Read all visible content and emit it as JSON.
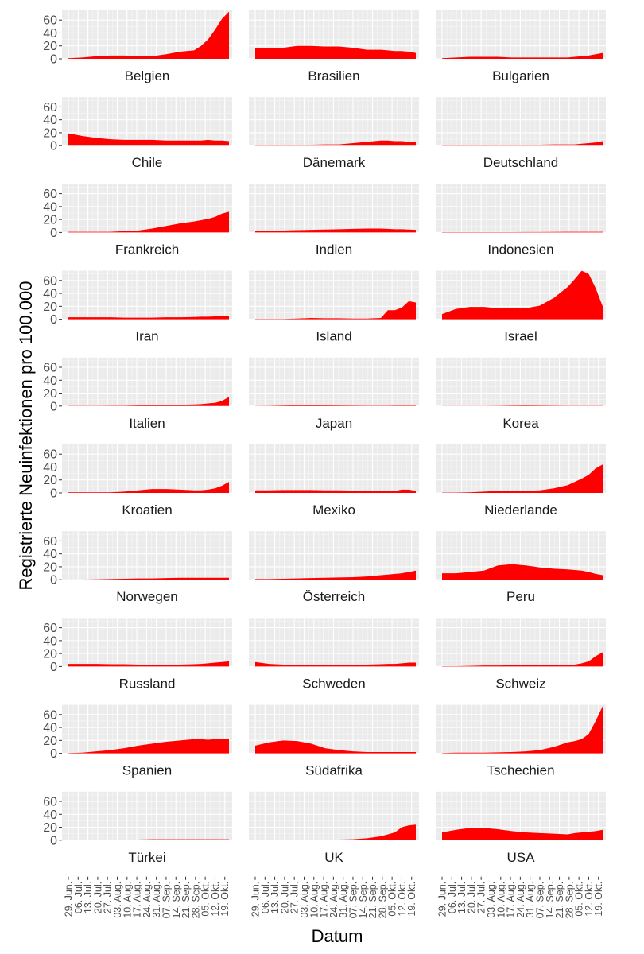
{
  "chart_data": {
    "type": "area",
    "layout": "facet-grid-10x3",
    "xlabel": "Datum",
    "ylabel": "Registrierte Neuinfektionen pro 100.000",
    "ylim": [
      0,
      75
    ],
    "yticks": [
      0,
      20,
      40,
      60
    ],
    "xlim": [
      0,
      115
    ],
    "x_ticks": [
      {
        "label": "29. Jun.",
        "day": 0
      },
      {
        "label": "06. Jul.",
        "day": 7
      },
      {
        "label": "13. Jul.",
        "day": 14
      },
      {
        "label": "20. Jul.",
        "day": 21
      },
      {
        "label": "27. Jul.",
        "day": 28
      },
      {
        "label": "03. Aug.",
        "day": 35
      },
      {
        "label": "10. Aug.",
        "day": 42
      },
      {
        "label": "17. Aug.",
        "day": 49
      },
      {
        "label": "24. Aug.",
        "day": 56
      },
      {
        "label": "31. Aug.",
        "day": 63
      },
      {
        "label": "07. Sep.",
        "day": 70
      },
      {
        "label": "14. Sep.",
        "day": 77
      },
      {
        "label": "21. Sep.",
        "day": 84
      },
      {
        "label": "28. Sep.",
        "day": 91
      },
      {
        "label": "05. Okt.",
        "day": 98
      },
      {
        "label": "12. Okt.",
        "day": 105
      },
      {
        "label": "19. Okt.",
        "day": 112
      }
    ],
    "series_day_offsets": [
      0,
      10,
      20,
      30,
      40,
      50,
      60,
      70,
      80,
      90,
      95,
      100,
      105,
      110,
      115
    ],
    "fill_color": "#ff0000",
    "panel_background": "#ebebeb",
    "series": [
      {
        "name": "Belgien",
        "values": [
          1,
          2,
          4,
          5,
          5,
          4,
          4,
          7,
          11,
          13,
          20,
          30,
          45,
          62,
          73
        ]
      },
      {
        "name": "Brasilien",
        "values": [
          17,
          17,
          17,
          20,
          20,
          19,
          19,
          17,
          14,
          14,
          13,
          12,
          12,
          11,
          9
        ]
      },
      {
        "name": "Bulgarien",
        "values": [
          1,
          2,
          3,
          3,
          3,
          2,
          2,
          2,
          2,
          2,
          3,
          4,
          5,
          7,
          9
        ]
      },
      {
        "name": "Chile",
        "values": [
          19,
          15,
          12,
          10,
          9,
          9,
          9,
          8,
          8,
          8,
          8,
          9,
          8,
          8,
          7
        ]
      },
      {
        "name": "Dänemark",
        "values": [
          0.5,
          0.5,
          1,
          1,
          1.5,
          2,
          2,
          4,
          6,
          8,
          8,
          7,
          7,
          6,
          6
        ]
      },
      {
        "name": "Deutschland",
        "values": [
          0.5,
          0.5,
          0.5,
          1,
          1,
          1,
          1,
          1.5,
          2,
          2,
          2,
          3,
          4,
          5,
          7
        ]
      },
      {
        "name": "Frankreich",
        "values": [
          1,
          1,
          1,
          1,
          2,
          3,
          6,
          10,
          14,
          17,
          19,
          21,
          24,
          29,
          32
        ]
      },
      {
        "name": "Indien",
        "values": [
          2,
          2.5,
          3,
          3.5,
          4,
          4.5,
          5,
          5.5,
          6,
          6,
          5.5,
          5,
          5,
          4.5,
          4
        ]
      },
      {
        "name": "Indonesien",
        "values": [
          0.5,
          0.5,
          0.5,
          0.5,
          0.5,
          0.5,
          0.6,
          0.7,
          0.8,
          0.9,
          0.9,
          0.9,
          0.9,
          0.9,
          0.9
        ]
      },
      {
        "name": "Iran",
        "values": [
          3,
          3,
          3,
          3,
          2.5,
          2.5,
          2.5,
          3,
          3,
          3.5,
          4,
          4,
          4.5,
          5,
          5
        ]
      },
      {
        "name": "Island",
        "values": [
          0.5,
          0.5,
          0.5,
          1,
          2,
          1.5,
          1.5,
          1,
          1,
          2,
          14,
          14,
          18,
          28,
          26
        ]
      },
      {
        "name": "Israel",
        "values": [
          8,
          16,
          19,
          19,
          17,
          17,
          17,
          21,
          33,
          50,
          62,
          75,
          70,
          48,
          20
        ]
      },
      {
        "name": "Italien",
        "values": [
          0.3,
          0.3,
          0.3,
          0.5,
          0.5,
          1,
          1.5,
          2,
          2,
          2.5,
          3,
          4,
          5,
          8,
          14
        ]
      },
      {
        "name": "Japan",
        "values": [
          0.2,
          0.3,
          0.8,
          1.2,
          1.4,
          1,
          0.8,
          0.6,
          0.5,
          0.5,
          0.5,
          0.6,
          0.6,
          0.7,
          0.7
        ]
      },
      {
        "name": "Korea",
        "values": [
          0.2,
          0.2,
          0.2,
          0.2,
          0.3,
          0.6,
          0.8,
          0.6,
          0.5,
          0.4,
          0.3,
          0.3,
          0.3,
          0.3,
          0.3
        ]
      },
      {
        "name": "Kroatien",
        "values": [
          1,
          1,
          1,
          1,
          2,
          4,
          6,
          6,
          5,
          4,
          4,
          5,
          7,
          11,
          17
        ]
      },
      {
        "name": "Mexiko",
        "values": [
          4,
          4,
          4.5,
          4.5,
          4.5,
          4,
          4,
          3.5,
          3.5,
          3,
          3,
          3,
          5,
          5,
          3
        ]
      },
      {
        "name": "Niederlande",
        "values": [
          0.5,
          0.5,
          1,
          2,
          3,
          3.5,
          3,
          4,
          7,
          12,
          17,
          22,
          28,
          38,
          44
        ]
      },
      {
        "name": "Norwegen",
        "values": [
          0.3,
          0.3,
          0.5,
          1,
          1.5,
          2,
          2,
          2.5,
          3,
          3,
          3,
          3,
          3,
          3,
          3
        ]
      },
      {
        "name": "Österreich",
        "values": [
          1,
          1,
          1.5,
          2,
          2.5,
          3,
          3.5,
          4,
          5,
          7,
          8,
          9,
          10,
          12,
          14
        ]
      },
      {
        "name": "Peru",
        "values": [
          10,
          10,
          12,
          14,
          22,
          24,
          22,
          19,
          17,
          16,
          15,
          14,
          12,
          9,
          7
        ]
      },
      {
        "name": "Russland",
        "values": [
          4,
          4,
          4,
          3.5,
          3.5,
          3,
          3,
          3,
          3,
          3.5,
          4,
          5,
          6,
          7,
          8
        ]
      },
      {
        "name": "Schweden",
        "values": [
          7,
          4,
          3,
          3,
          3,
          3,
          3,
          3,
          3,
          3.5,
          4,
          4,
          5,
          6,
          6
        ]
      },
      {
        "name": "Schweiz",
        "values": [
          0.5,
          0.5,
          1,
          1.5,
          1.5,
          2,
          2,
          2,
          2.5,
          3,
          3,
          5,
          8,
          16,
          22
        ]
      },
      {
        "name": "Spanien",
        "values": [
          0.5,
          1,
          3,
          5,
          8,
          12,
          15,
          18,
          20,
          22,
          22,
          21,
          22,
          22,
          23
        ]
      },
      {
        "name": "Südafrika",
        "values": [
          12,
          17,
          20,
          19,
          15,
          8,
          5,
          3,
          2,
          2,
          2,
          2,
          2,
          2,
          2
        ]
      },
      {
        "name": "Tschechien",
        "values": [
          0.5,
          1,
          1,
          1,
          1.5,
          2,
          3,
          5,
          10,
          17,
          19,
          22,
          30,
          50,
          73
        ]
      },
      {
        "name": "Türkei",
        "values": [
          1,
          1,
          1,
          1,
          1,
          1,
          1.5,
          1.5,
          1.5,
          1.5,
          1.5,
          1.5,
          1.5,
          1.5,
          1.5
        ]
      },
      {
        "name": "UK",
        "values": [
          0.3,
          0.3,
          0.5,
          0.5,
          0.5,
          1,
          1,
          1.5,
          3,
          6,
          9,
          12,
          20,
          23,
          24
        ]
      },
      {
        "name": "USA",
        "values": [
          12,
          16,
          19,
          19,
          17,
          14,
          12,
          11,
          10,
          9,
          11,
          12,
          13,
          14,
          16
        ]
      }
    ]
  }
}
